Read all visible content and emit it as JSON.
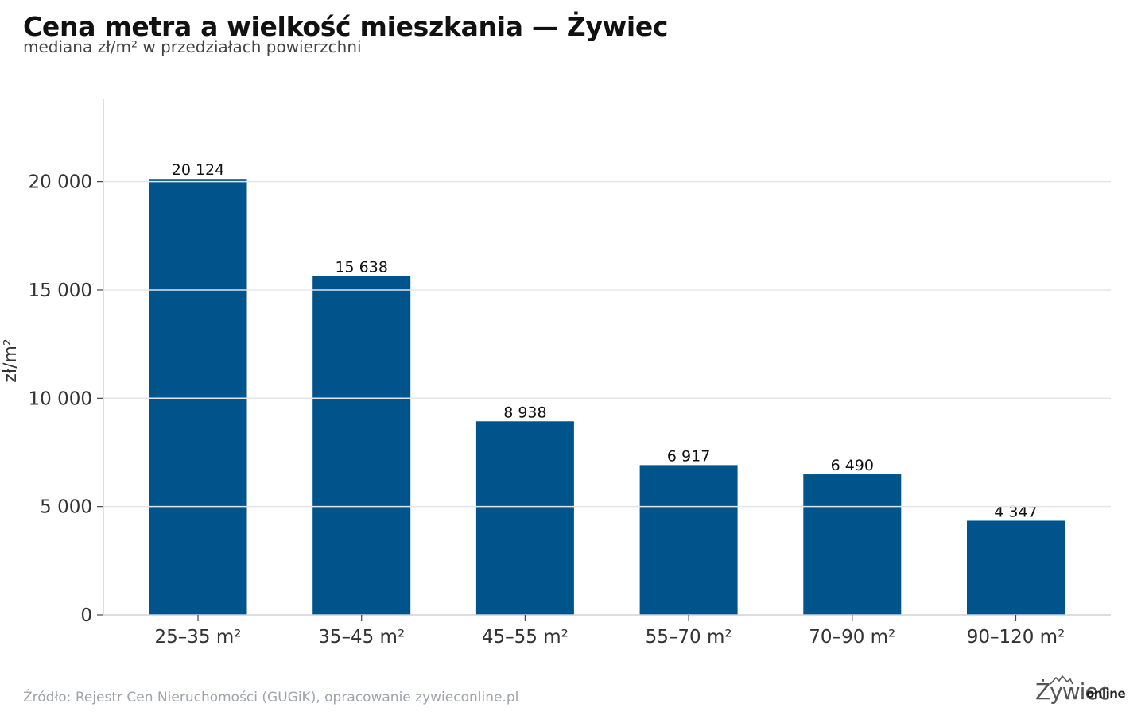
{
  "header": {
    "title": "Cena metra a wielkość mieszkania — Żywiec",
    "subtitle": "mediana zł/m² w przedziałach powierzchni"
  },
  "footer": {
    "source": "Źródło: Rejestr Cen Nieruchomości (GUGiK), opracowanie zywieconline.pl"
  },
  "logo": {
    "main": "Żywiec",
    "sub": "online"
  },
  "colors": {
    "bar": "#00548c",
    "grid": "#e3e5e8",
    "axis": "#cfd2d6"
  },
  "chart_data": {
    "type": "bar",
    "categories": [
      "25–35 m²",
      "35–45 m²",
      "45–55 m²",
      "55–70 m²",
      "70–90 m²",
      "90–120 m²"
    ],
    "values": [
      20124,
      15638,
      8938,
      6917,
      6490,
      4347
    ],
    "value_labels": [
      "20 124",
      "15 638",
      "8 938",
      "6 917",
      "6 490",
      "4 347"
    ],
    "ylabel": "zł/m²",
    "ylim": [
      0,
      23800
    ],
    "yticks": [
      0,
      5000,
      10000,
      15000,
      20000
    ],
    "ytick_labels": [
      "0",
      "5 000",
      "10 000",
      "15 000",
      "20 000"
    ],
    "grid": true
  }
}
